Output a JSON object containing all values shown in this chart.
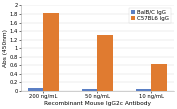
{
  "categories": [
    "200 ng/mL",
    "50 ng/mL",
    "10 ng/mL"
  ],
  "series": [
    {
      "label": "BalB/C IgG",
      "values": [
        0.07,
        0.04,
        0.04
      ],
      "color": "#5b7fc4"
    },
    {
      "label": "C57BL6 IgG",
      "values": [
        1.82,
        1.3,
        0.63
      ],
      "color": "#e07b30"
    }
  ],
  "xlabel": "Recombinant Mouse IgG2c Antibody",
  "ylabel": "Abs (450nm)",
  "ylim": [
    0,
    2.0
  ],
  "yticks": [
    0,
    0.2,
    0.4,
    0.6,
    0.8,
    1.0,
    1.2,
    1.4,
    1.6,
    1.8,
    2.0
  ],
  "ytick_labels": [
    "0",
    "0.2",
    "0.4",
    "0.6",
    "0.8",
    "1",
    "1.2",
    "1.4",
    "1.6",
    "1.8",
    "2"
  ],
  "background_color": "#ffffff",
  "legend_fontsize": 4.0,
  "xlabel_fontsize": 4.2,
  "ylabel_fontsize": 4.2,
  "tick_fontsize": 3.8,
  "bar_width": 0.28
}
